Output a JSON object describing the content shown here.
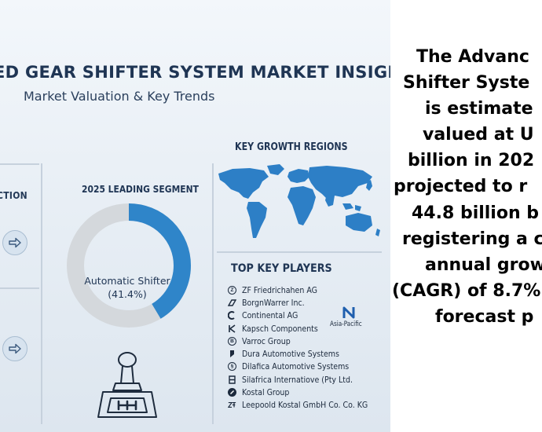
{
  "infographic": {
    "title": "ED GEAR SHIFTER SYSTEM MARKET INSIGHTS",
    "subtitle": "Market Valuation & Key Trends",
    "left_section_label": "CTION",
    "leading_segment": {
      "heading": "2025 LEADING SEGMENT",
      "name": "Automatic Shifter",
      "share_text": "(41.4%)",
      "share_value": 41.4,
      "colors": {
        "segment": "#2f85c9",
        "remainder": "#d4d8dc"
      }
    },
    "regions": {
      "heading": "KEY GROWTH REGIONS",
      "map_color": "#2d7fc6"
    },
    "players": {
      "heading": "TOP KEY PLAYERS",
      "items": [
        {
          "icon": "zf-logo-icon",
          "name": "ZF Friedrichahen AG"
        },
        {
          "icon": "borgwarner-logo-icon",
          "name": "BorgnWarrer Inc."
        },
        {
          "icon": "continental-logo-icon",
          "name": "Continental AG"
        },
        {
          "icon": "kapsch-logo-icon",
          "name": "Kapsch Components"
        },
        {
          "icon": "varroc-logo-icon",
          "name": "Varroc Group"
        },
        {
          "icon": "dura-logo-icon",
          "name": "Dura Automotive Systems"
        },
        {
          "icon": "dilafica-logo-icon",
          "name": "Dilafica Automotive Systems"
        },
        {
          "icon": "silafrica-logo-icon",
          "name": "Silafrica Internatiove (Pty Ltd."
        },
        {
          "icon": "kostal-logo-icon",
          "name": "Kostal Group"
        },
        {
          "icon": "leopold-logo-icon",
          "name": "Leepoold Kostal GmbH Co. Co. KG"
        }
      ],
      "region_badge": "Asia-Pacific"
    }
  },
  "summary_lines": [
    "The Advanc",
    "Shifter Syste",
    "is estimate",
    "valued at U",
    "billion in 202",
    "projected to r",
    "44.8 billion b",
    "registering a c",
    "annual grow",
    "(CAGR) of 8.7%",
    "forecast p"
  ]
}
